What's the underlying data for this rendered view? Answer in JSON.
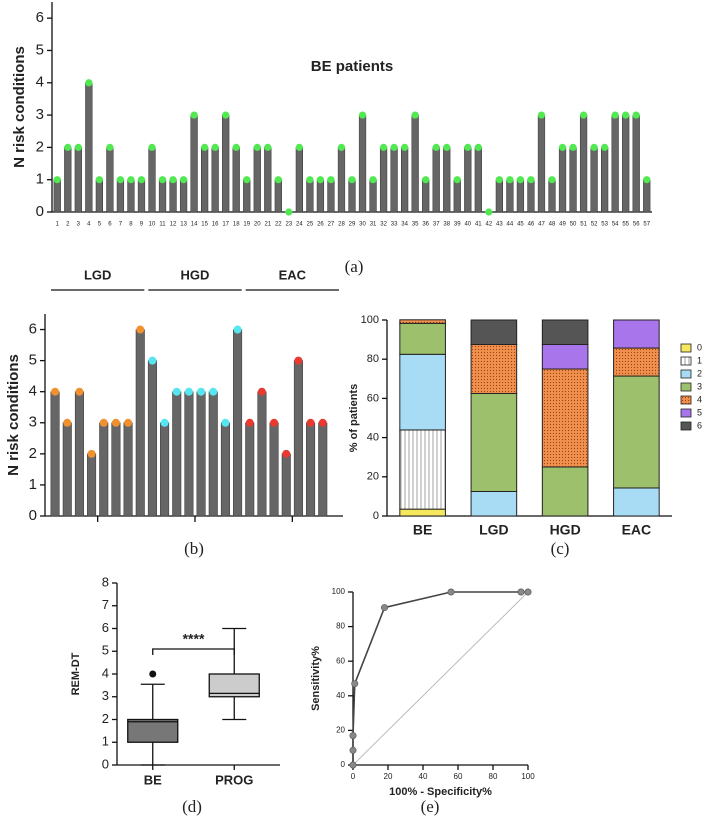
{
  "chart_data": [
    {
      "type": "bar",
      "label": "(a)",
      "title": "BE patients",
      "ylabel": "N risk conditions",
      "categories": [
        "1",
        "2",
        "3",
        "4",
        "5",
        "6",
        "7",
        "8",
        "9",
        "10",
        "11",
        "12",
        "13",
        "14",
        "15",
        "16",
        "17",
        "18",
        "19",
        "20",
        "21",
        "22",
        "23",
        "24",
        "25",
        "26",
        "27",
        "28",
        "29",
        "30",
        "31",
        "32",
        "33",
        "34",
        "35",
        "36",
        "37",
        "38",
        "39",
        "40",
        "41",
        "42",
        "43",
        "44",
        "45",
        "46",
        "47",
        "48",
        "49",
        "50",
        "51",
        "52",
        "53",
        "54",
        "55",
        "56",
        "57"
      ],
      "values": [
        1,
        2,
        2,
        4,
        1,
        2,
        1,
        1,
        1,
        2,
        1,
        1,
        1,
        3,
        2,
        2,
        3,
        2,
        1,
        2,
        2,
        1,
        0,
        2,
        1,
        1,
        1,
        2,
        1,
        3,
        1,
        2,
        2,
        2,
        3,
        1,
        2,
        2,
        1,
        2,
        2,
        0,
        1,
        1,
        1,
        1,
        3,
        1,
        2,
        2,
        3,
        2,
        2,
        3,
        3,
        3,
        1
      ],
      "color": "#666666",
      "cap_color": "#52e852",
      "ylim": [
        0,
        6.5
      ],
      "yticks": [
        0,
        1,
        2,
        3,
        4,
        5,
        6
      ]
    },
    {
      "type": "group_bar",
      "label": "(b)",
      "ylabel": "N risk conditions",
      "color": "#666666",
      "series": [
        {
          "name": "LGD",
          "color": "#f0902e",
          "values": [
            4,
            3,
            4,
            2,
            3,
            3,
            3,
            6
          ]
        },
        {
          "name": "HGD",
          "color": "#55e6f0",
          "values": [
            5,
            3,
            4,
            4,
            4,
            4,
            3,
            6
          ]
        },
        {
          "name": "EAC",
          "color": "#e83a30",
          "values": [
            3,
            4,
            3,
            2,
            5,
            3,
            3
          ]
        }
      ],
      "ylim": [
        0,
        6.5
      ],
      "yticks": [
        0,
        1,
        2,
        3,
        4,
        5,
        6
      ]
    },
    {
      "type": "stacked_bar",
      "label": "(c)",
      "ylabel": "% of patients",
      "categories": [
        "BE",
        "LGD",
        "HGD",
        "EAC"
      ],
      "series": [
        {
          "name": "0",
          "color": "#f5e85e",
          "values": [
            3.5,
            0,
            0,
            0
          ]
        },
        {
          "name": "1",
          "color": "#ffffff",
          "pattern": "vertical-lines",
          "values": [
            40.4,
            0,
            0,
            0
          ]
        },
        {
          "name": "2",
          "color": "#a8dcf5",
          "values": [
            38.6,
            12.5,
            0,
            14.3
          ]
        },
        {
          "name": "3",
          "color": "#9cc06c",
          "values": [
            15.8,
            50,
            25,
            57.1
          ]
        },
        {
          "name": "4",
          "color": "#f0904e",
          "pattern": "dots",
          "values": [
            1.8,
            25,
            50,
            14.3
          ]
        },
        {
          "name": "5",
          "color": "#a875ea",
          "values": [
            0,
            0,
            12.5,
            14.3
          ]
        },
        {
          "name": "6",
          "color": "#555555",
          "values": [
            0,
            12.5,
            12.5,
            0
          ]
        }
      ],
      "ylim": [
        0,
        100
      ],
      "yticks": [
        0,
        20,
        40,
        60,
        80,
        100
      ]
    },
    {
      "type": "box",
      "label": "(d)",
      "ylabel": "REM-DT",
      "annotation": "****",
      "categories": [
        "BE",
        "PROG"
      ],
      "boxes": [
        {
          "color": "#777777",
          "min": 0,
          "q1": 1,
          "median": 1.9,
          "q3": 2,
          "max": 3.55,
          "outliers": [
            4
          ]
        },
        {
          "color": "#cccccc",
          "min": 2,
          "q1": 3,
          "median": 3.15,
          "q3": 4,
          "max": 6,
          "outliers": []
        }
      ],
      "ylim": [
        0,
        8
      ],
      "yticks": [
        0,
        1,
        2,
        3,
        4,
        5,
        6,
        7,
        8
      ]
    },
    {
      "type": "line",
      "label": "(e)",
      "xlabel": "100% - Specificity%",
      "ylabel": "Sensitivity%",
      "x": [
        0,
        0,
        0,
        1,
        18,
        56,
        96,
        100
      ],
      "y": [
        0,
        8.5,
        17,
        47,
        91,
        100,
        100,
        100
      ],
      "color": "#444444",
      "marker_color": "#888888",
      "xlim": [
        0,
        100
      ],
      "ylim": [
        0,
        100
      ],
      "xticks": [
        0,
        20,
        40,
        60,
        80,
        100
      ],
      "yticks": [
        0,
        20,
        40,
        60,
        80,
        100
      ]
    }
  ]
}
